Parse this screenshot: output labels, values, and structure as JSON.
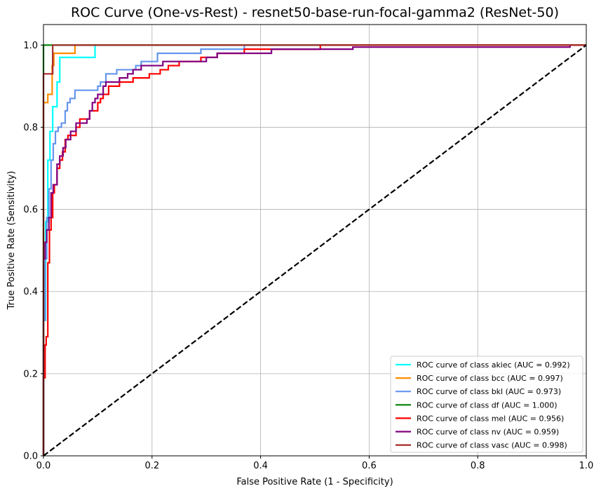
{
  "chart_data": {
    "type": "line",
    "title": "ROC Curve (One-vs-Rest) - resnet50-base-run-focal-gamma2 (ResNet-50)",
    "xlabel": "False Positive Rate (1 - Specificity)",
    "ylabel": "True Positive Rate (Sensitivity)",
    "xlim": [
      0.0,
      1.0
    ],
    "ylim": [
      0.0,
      1.05
    ],
    "xticks": [
      "0.0",
      "0.2",
      "0.4",
      "0.6",
      "0.8",
      "1.0"
    ],
    "yticks": [
      "0.0",
      "0.2",
      "0.4",
      "0.6",
      "0.8",
      "1.0"
    ],
    "grid": true,
    "legend_position": "lower right",
    "series": [
      {
        "name": "ROC curve of class akiec (AUC = 0.992)",
        "color": "#00ffff",
        "points": [
          [
            0,
            0
          ],
          [
            0,
            0.33
          ],
          [
            0.004,
            0.33
          ],
          [
            0.004,
            0.57
          ],
          [
            0.008,
            0.57
          ],
          [
            0.008,
            0.72
          ],
          [
            0.012,
            0.72
          ],
          [
            0.012,
            0.79
          ],
          [
            0.017,
            0.79
          ],
          [
            0.017,
            0.85
          ],
          [
            0.025,
            0.85
          ],
          [
            0.025,
            0.91
          ],
          [
            0.03,
            0.91
          ],
          [
            0.03,
            0.97
          ],
          [
            0.095,
            0.97
          ],
          [
            0.095,
            1.0
          ],
          [
            1.0,
            1.0
          ]
        ]
      },
      {
        "name": "ROC curve of class bcc (AUC = 0.997)",
        "color": "#ff8c00",
        "points": [
          [
            0,
            0
          ],
          [
            0,
            0.86
          ],
          [
            0.008,
            0.86
          ],
          [
            0.008,
            0.88
          ],
          [
            0.016,
            0.88
          ],
          [
            0.016,
            0.95
          ],
          [
            0.019,
            0.95
          ],
          [
            0.019,
            0.98
          ],
          [
            0.058,
            0.98
          ],
          [
            0.058,
            1.0
          ],
          [
            1.0,
            1.0
          ]
        ]
      },
      {
        "name": "ROC curve of class bkl (AUC = 0.973)",
        "color": "#6495ed",
        "points": [
          [
            0,
            0
          ],
          [
            0,
            0.33
          ],
          [
            0.003,
            0.33
          ],
          [
            0.003,
            0.48
          ],
          [
            0.006,
            0.48
          ],
          [
            0.006,
            0.58
          ],
          [
            0.01,
            0.58
          ],
          [
            0.01,
            0.65
          ],
          [
            0.014,
            0.65
          ],
          [
            0.014,
            0.72
          ],
          [
            0.018,
            0.72
          ],
          [
            0.018,
            0.76
          ],
          [
            0.022,
            0.76
          ],
          [
            0.022,
            0.79
          ],
          [
            0.027,
            0.79
          ],
          [
            0.027,
            0.8
          ],
          [
            0.033,
            0.8
          ],
          [
            0.033,
            0.81
          ],
          [
            0.04,
            0.81
          ],
          [
            0.04,
            0.84
          ],
          [
            0.044,
            0.84
          ],
          [
            0.044,
            0.86
          ],
          [
            0.049,
            0.86
          ],
          [
            0.049,
            0.87
          ],
          [
            0.058,
            0.87
          ],
          [
            0.058,
            0.89
          ],
          [
            0.1,
            0.89
          ],
          [
            0.1,
            0.9
          ],
          [
            0.105,
            0.9
          ],
          [
            0.105,
            0.91
          ],
          [
            0.115,
            0.91
          ],
          [
            0.115,
            0.93
          ],
          [
            0.135,
            0.93
          ],
          [
            0.135,
            0.94
          ],
          [
            0.17,
            0.94
          ],
          [
            0.17,
            0.95
          ],
          [
            0.18,
            0.95
          ],
          [
            0.18,
            0.96
          ],
          [
            0.21,
            0.96
          ],
          [
            0.21,
            0.98
          ],
          [
            0.29,
            0.98
          ],
          [
            0.29,
            0.99
          ],
          [
            0.37,
            0.99
          ],
          [
            0.37,
            1.0
          ],
          [
            1.0,
            1.0
          ]
        ]
      },
      {
        "name": "ROC curve of class df (AUC = 1.000)",
        "color": "#008000",
        "points": [
          [
            0,
            0
          ],
          [
            0,
            1.0
          ],
          [
            1.0,
            1.0
          ]
        ]
      },
      {
        "name": "ROC curve of class mel (AUC = 0.956)",
        "color": "#ff0000",
        "points": [
          [
            0,
            0
          ],
          [
            0,
            0.19
          ],
          [
            0.003,
            0.19
          ],
          [
            0.003,
            0.27
          ],
          [
            0.005,
            0.27
          ],
          [
            0.005,
            0.29
          ],
          [
            0.008,
            0.29
          ],
          [
            0.008,
            0.47
          ],
          [
            0.011,
            0.47
          ],
          [
            0.011,
            0.55
          ],
          [
            0.014,
            0.55
          ],
          [
            0.014,
            0.58
          ],
          [
            0.017,
            0.58
          ],
          [
            0.017,
            0.64
          ],
          [
            0.02,
            0.64
          ],
          [
            0.02,
            0.66
          ],
          [
            0.025,
            0.66
          ],
          [
            0.025,
            0.7
          ],
          [
            0.03,
            0.7
          ],
          [
            0.03,
            0.72
          ],
          [
            0.035,
            0.72
          ],
          [
            0.035,
            0.74
          ],
          [
            0.04,
            0.74
          ],
          [
            0.04,
            0.77
          ],
          [
            0.045,
            0.77
          ],
          [
            0.045,
            0.78
          ],
          [
            0.06,
            0.78
          ],
          [
            0.06,
            0.8
          ],
          [
            0.067,
            0.8
          ],
          [
            0.067,
            0.82
          ],
          [
            0.085,
            0.82
          ],
          [
            0.085,
            0.84
          ],
          [
            0.1,
            0.84
          ],
          [
            0.1,
            0.86
          ],
          [
            0.105,
            0.86
          ],
          [
            0.105,
            0.87
          ],
          [
            0.11,
            0.87
          ],
          [
            0.11,
            0.88
          ],
          [
            0.12,
            0.88
          ],
          [
            0.12,
            0.9
          ],
          [
            0.14,
            0.9
          ],
          [
            0.14,
            0.91
          ],
          [
            0.165,
            0.91
          ],
          [
            0.165,
            0.92
          ],
          [
            0.195,
            0.92
          ],
          [
            0.195,
            0.93
          ],
          [
            0.215,
            0.93
          ],
          [
            0.215,
            0.94
          ],
          [
            0.23,
            0.94
          ],
          [
            0.23,
            0.95
          ],
          [
            0.25,
            0.95
          ],
          [
            0.25,
            0.96
          ],
          [
            0.29,
            0.96
          ],
          [
            0.29,
            0.97
          ],
          [
            0.32,
            0.97
          ],
          [
            0.32,
            0.98
          ],
          [
            0.37,
            0.98
          ],
          [
            0.37,
            0.99
          ],
          [
            0.51,
            0.99
          ],
          [
            0.51,
            1.0
          ],
          [
            1.0,
            1.0
          ]
        ]
      },
      {
        "name": "ROC curve of class nv (AUC = 0.959)",
        "color": "#800080",
        "points": [
          [
            0,
            0
          ],
          [
            0,
            0.48
          ],
          [
            0.003,
            0.48
          ],
          [
            0.003,
            0.52
          ],
          [
            0.006,
            0.52
          ],
          [
            0.006,
            0.55
          ],
          [
            0.01,
            0.55
          ],
          [
            0.01,
            0.58
          ],
          [
            0.014,
            0.58
          ],
          [
            0.014,
            0.64
          ],
          [
            0.018,
            0.64
          ],
          [
            0.018,
            0.66
          ],
          [
            0.025,
            0.66
          ],
          [
            0.025,
            0.71
          ],
          [
            0.03,
            0.71
          ],
          [
            0.03,
            0.73
          ],
          [
            0.036,
            0.73
          ],
          [
            0.036,
            0.75
          ],
          [
            0.041,
            0.75
          ],
          [
            0.041,
            0.77
          ],
          [
            0.05,
            0.77
          ],
          [
            0.05,
            0.79
          ],
          [
            0.06,
            0.79
          ],
          [
            0.06,
            0.81
          ],
          [
            0.08,
            0.81
          ],
          [
            0.08,
            0.82
          ],
          [
            0.085,
            0.82
          ],
          [
            0.085,
            0.84
          ],
          [
            0.09,
            0.84
          ],
          [
            0.09,
            0.86
          ],
          [
            0.095,
            0.86
          ],
          [
            0.095,
            0.87
          ],
          [
            0.1,
            0.87
          ],
          [
            0.1,
            0.88
          ],
          [
            0.11,
            0.88
          ],
          [
            0.11,
            0.9
          ],
          [
            0.115,
            0.9
          ],
          [
            0.115,
            0.91
          ],
          [
            0.14,
            0.91
          ],
          [
            0.14,
            0.92
          ],
          [
            0.155,
            0.92
          ],
          [
            0.155,
            0.93
          ],
          [
            0.165,
            0.93
          ],
          [
            0.165,
            0.94
          ],
          [
            0.18,
            0.94
          ],
          [
            0.18,
            0.95
          ],
          [
            0.22,
            0.95
          ],
          [
            0.22,
            0.96
          ],
          [
            0.3,
            0.96
          ],
          [
            0.3,
            0.97
          ],
          [
            0.32,
            0.97
          ],
          [
            0.32,
            0.98
          ],
          [
            0.42,
            0.98
          ],
          [
            0.42,
            0.99
          ],
          [
            0.57,
            0.99
          ],
          [
            0.57,
            0.995
          ],
          [
            0.97,
            0.995
          ],
          [
            0.97,
            1.0
          ]
        ]
      },
      {
        "name": "ROC curve of class vasc (AUC = 0.998)",
        "color": "#a52a2a",
        "points": [
          [
            0,
            0
          ],
          [
            0,
            0.93
          ],
          [
            0.017,
            0.93
          ],
          [
            0.017,
            1.0
          ],
          [
            1.0,
            1.0
          ]
        ]
      },
      {
        "name": "",
        "color": "#000000",
        "dashed": true,
        "points": [
          [
            0,
            0
          ],
          [
            1,
            1
          ]
        ]
      }
    ]
  }
}
